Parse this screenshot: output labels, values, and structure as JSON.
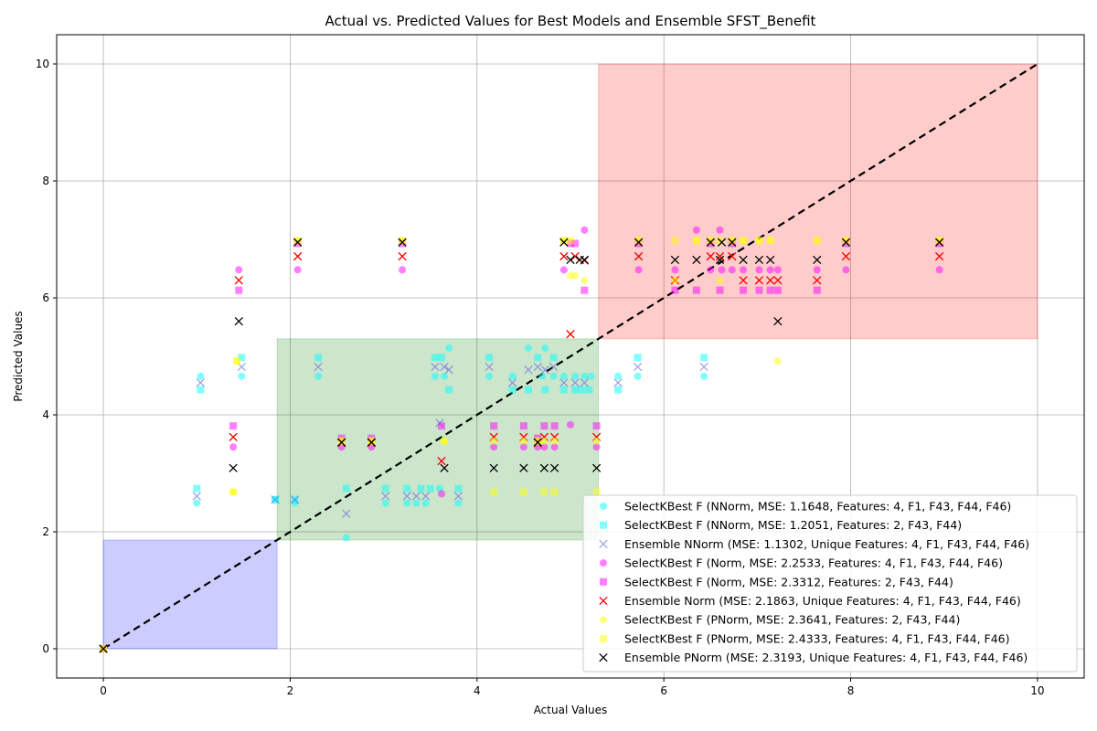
{
  "chart_data": {
    "type": "scatter",
    "title": "Actual vs. Predicted Values for Best Models and Ensemble SFST_Benefit",
    "xlabel": "Actual Values",
    "ylabel": "Predicted Values",
    "xlim": [
      -0.5,
      10.5
    ],
    "ylim": [
      -0.5,
      10.5
    ],
    "xticks": [
      "0",
      "2",
      "4",
      "6",
      "8",
      "10"
    ],
    "yticks": [
      "0",
      "2",
      "4",
      "6",
      "8",
      "10"
    ],
    "xtick_values": [
      0,
      2,
      4,
      6,
      8,
      10
    ],
    "ytick_values": [
      0,
      2,
      4,
      6,
      8,
      10
    ],
    "grid": true,
    "legend_position": "lower-right",
    "regions": [
      {
        "x0": 0,
        "x1": 1.86,
        "y0": 0,
        "y1": 1.86,
        "color": "#0000ff",
        "opacity": 0.2
      },
      {
        "x0": 1.86,
        "x1": 5.3,
        "y0": 1.86,
        "y1": 5.3,
        "color": "#008000",
        "opacity": 0.2
      },
      {
        "x0": 5.3,
        "x1": 10,
        "y0": 5.3,
        "y1": 10,
        "color": "#ff0000",
        "opacity": 0.2
      }
    ],
    "identity_line": {
      "from": [
        0,
        0
      ],
      "to": [
        10,
        10
      ],
      "color": "#000000",
      "style": "dashed"
    },
    "series": [
      {
        "name": "SelectKBest F (NNorm, MSE: 1.1648, Features: 4, F1, F43, F44, F46)",
        "marker": "circle",
        "color": "#00ffff",
        "opacity": 0.5,
        "points": [
          [
            0,
            0
          ],
          [
            1.0,
            2.49
          ],
          [
            1.04,
            4.66
          ],
          [
            1.48,
            4.66
          ],
          [
            1.84,
            2.55
          ],
          [
            2.05,
            2.49
          ],
          [
            2.3,
            4.66
          ],
          [
            2.6,
            1.9
          ],
          [
            3.02,
            2.49
          ],
          [
            3.25,
            2.49
          ],
          [
            3.35,
            2.49
          ],
          [
            3.45,
            2.49
          ],
          [
            3.55,
            4.66
          ],
          [
            3.6,
            2.74
          ],
          [
            3.65,
            4.66
          ],
          [
            3.7,
            5.14
          ],
          [
            3.8,
            2.49
          ],
          [
            4.13,
            4.66
          ],
          [
            4.38,
            4.66
          ],
          [
            4.55,
            5.14
          ],
          [
            4.7,
            4.66
          ],
          [
            4.73,
            5.14
          ],
          [
            4.82,
            4.66
          ],
          [
            4.93,
            4.66
          ],
          [
            5.05,
            4.66
          ],
          [
            5.15,
            4.66
          ],
          [
            5.22,
            4.66
          ],
          [
            5.51,
            4.66
          ],
          [
            5.72,
            4.66
          ],
          [
            6.43,
            4.66
          ]
        ]
      },
      {
        "name": "SelectKBest F (NNorm, MSE: 1.2051, Features: 2, F43, F44)",
        "marker": "square",
        "color": "#00ffff",
        "opacity": 0.5,
        "points": [
          [
            0,
            0
          ],
          [
            1.0,
            2.74
          ],
          [
            1.04,
            4.43
          ],
          [
            1.48,
            4.98
          ],
          [
            1.84,
            2.55
          ],
          [
            2.05,
            2.55
          ],
          [
            2.3,
            4.98
          ],
          [
            2.6,
            2.74
          ],
          [
            3.02,
            2.74
          ],
          [
            3.25,
            2.74
          ],
          [
            3.4,
            2.74
          ],
          [
            3.5,
            2.74
          ],
          [
            3.55,
            4.98
          ],
          [
            3.62,
            4.98
          ],
          [
            3.7,
            4.43
          ],
          [
            3.8,
            2.74
          ],
          [
            4.13,
            4.98
          ],
          [
            4.38,
            4.43
          ],
          [
            4.55,
            4.43
          ],
          [
            4.65,
            4.98
          ],
          [
            4.73,
            4.43
          ],
          [
            4.82,
            4.98
          ],
          [
            4.93,
            4.43
          ],
          [
            5.05,
            4.43
          ],
          [
            5.12,
            4.43
          ],
          [
            5.2,
            4.43
          ],
          [
            5.51,
            4.43
          ],
          [
            5.72,
            4.98
          ],
          [
            6.43,
            4.98
          ]
        ]
      },
      {
        "name": "Ensemble NNorm (MSE: 1.1302, Unique Features: 4, F1, F43, F44, F46)",
        "marker": "x",
        "color": "#6666dd",
        "opacity": 0.6,
        "points": [
          [
            0,
            0
          ],
          [
            1.0,
            2.61
          ],
          [
            1.04,
            4.55
          ],
          [
            1.48,
            4.82
          ],
          [
            1.84,
            2.55
          ],
          [
            2.05,
            2.55
          ],
          [
            2.3,
            4.82
          ],
          [
            2.6,
            2.31
          ],
          [
            3.02,
            2.61
          ],
          [
            3.25,
            2.61
          ],
          [
            3.35,
            2.61
          ],
          [
            3.45,
            2.61
          ],
          [
            3.55,
            4.82
          ],
          [
            3.6,
            3.86
          ],
          [
            3.65,
            4.82
          ],
          [
            3.7,
            4.77
          ],
          [
            3.8,
            2.61
          ],
          [
            4.13,
            4.82
          ],
          [
            4.38,
            4.55
          ],
          [
            4.55,
            4.77
          ],
          [
            4.65,
            4.82
          ],
          [
            4.73,
            4.77
          ],
          [
            4.82,
            4.82
          ],
          [
            4.93,
            4.55
          ],
          [
            5.05,
            4.55
          ],
          [
            5.15,
            4.55
          ],
          [
            5.51,
            4.55
          ],
          [
            5.72,
            4.82
          ],
          [
            6.43,
            4.82
          ]
        ]
      },
      {
        "name": "SelectKBest F (Norm, MSE: 2.2533, Features: 4, F1, F43, F44, F46)",
        "marker": "circle",
        "color": "#ff00ff",
        "opacity": 0.5,
        "points": [
          [
            0,
            0
          ],
          [
            1.39,
            3.45
          ],
          [
            1.45,
            6.48
          ],
          [
            2.08,
            6.48
          ],
          [
            2.55,
            3.45
          ],
          [
            2.87,
            3.45
          ],
          [
            3.2,
            6.48
          ],
          [
            3.62,
            2.65
          ],
          [
            4.18,
            3.45
          ],
          [
            4.5,
            3.45
          ],
          [
            4.65,
            3.45
          ],
          [
            4.72,
            3.45
          ],
          [
            4.83,
            3.45
          ],
          [
            4.93,
            6.48
          ],
          [
            5.0,
            3.83
          ],
          [
            5.15,
            7.16
          ],
          [
            5.28,
            3.45
          ],
          [
            5.73,
            6.48
          ],
          [
            6.12,
            6.48
          ],
          [
            6.35,
            7.16
          ],
          [
            6.5,
            6.48
          ],
          [
            6.6,
            7.16
          ],
          [
            6.62,
            6.48
          ],
          [
            6.73,
            6.48
          ],
          [
            6.85,
            6.48
          ],
          [
            7.02,
            6.48
          ],
          [
            7.14,
            6.48
          ],
          [
            7.22,
            6.48
          ],
          [
            7.64,
            6.48
          ],
          [
            7.95,
            6.48
          ],
          [
            8.95,
            6.48
          ]
        ]
      },
      {
        "name": "SelectKBest F (Norm, MSE: 2.3312, Features: 2, F43, F44)",
        "marker": "square",
        "color": "#ff00ff",
        "opacity": 0.5,
        "points": [
          [
            0,
            0
          ],
          [
            1.39,
            3.81
          ],
          [
            1.45,
            6.13
          ],
          [
            2.08,
            6.93
          ],
          [
            2.55,
            3.6
          ],
          [
            2.87,
            3.6
          ],
          [
            3.2,
            6.93
          ],
          [
            3.62,
            3.81
          ],
          [
            4.18,
            3.81
          ],
          [
            4.5,
            3.81
          ],
          [
            4.65,
            3.6
          ],
          [
            4.72,
            3.81
          ],
          [
            4.83,
            3.81
          ],
          [
            5.0,
            6.93
          ],
          [
            5.05,
            6.93
          ],
          [
            5.15,
            6.13
          ],
          [
            5.28,
            3.81
          ],
          [
            5.73,
            6.93
          ],
          [
            6.12,
            6.13
          ],
          [
            6.35,
            6.13
          ],
          [
            6.5,
            6.93
          ],
          [
            6.6,
            6.13
          ],
          [
            6.73,
            6.93
          ],
          [
            6.85,
            6.13
          ],
          [
            7.02,
            6.13
          ],
          [
            7.14,
            6.13
          ],
          [
            7.22,
            6.13
          ],
          [
            7.64,
            6.13
          ],
          [
            7.95,
            6.93
          ],
          [
            8.95,
            6.93
          ]
        ]
      },
      {
        "name": "Ensemble Norm (MSE: 2.1863, Unique Features: 4, F1, F43, F44, F46)",
        "marker": "x",
        "color": "#ff0000",
        "opacity": 1,
        "points": [
          [
            0,
            0
          ],
          [
            1.39,
            3.62
          ],
          [
            1.45,
            6.3
          ],
          [
            2.08,
            6.71
          ],
          [
            2.55,
            3.52
          ],
          [
            2.87,
            3.52
          ],
          [
            3.2,
            6.71
          ],
          [
            3.62,
            3.21
          ],
          [
            4.18,
            3.62
          ],
          [
            4.5,
            3.62
          ],
          [
            4.65,
            3.52
          ],
          [
            4.72,
            3.62
          ],
          [
            4.83,
            3.62
          ],
          [
            4.93,
            6.71
          ],
          [
            5.0,
            5.38
          ],
          [
            5.05,
            6.71
          ],
          [
            5.15,
            6.64
          ],
          [
            5.28,
            3.62
          ],
          [
            5.73,
            6.71
          ],
          [
            6.12,
            6.3
          ],
          [
            6.5,
            6.71
          ],
          [
            6.6,
            6.71
          ],
          [
            6.73,
            6.71
          ],
          [
            6.85,
            6.3
          ],
          [
            7.02,
            6.3
          ],
          [
            7.14,
            6.3
          ],
          [
            7.22,
            6.3
          ],
          [
            7.64,
            6.3
          ],
          [
            7.95,
            6.71
          ],
          [
            8.95,
            6.71
          ]
        ]
      },
      {
        "name": "SelectKBest F (PNorm, MSE: 2.3641, Features: 2, F43, F44)",
        "marker": "circle",
        "color": "#ffff00",
        "opacity": 0.5,
        "points": [
          [
            0,
            0
          ],
          [
            1.39,
            2.68
          ],
          [
            1.43,
            4.92
          ],
          [
            2.08,
            6.98
          ],
          [
            2.55,
            3.55
          ],
          [
            2.87,
            3.55
          ],
          [
            3.2,
            6.98
          ],
          [
            3.65,
            3.55
          ],
          [
            4.18,
            3.55
          ],
          [
            4.5,
            3.55
          ],
          [
            4.65,
            3.55
          ],
          [
            4.72,
            3.55
          ],
          [
            4.83,
            3.55
          ],
          [
            4.93,
            6.98
          ],
          [
            5.0,
            6.38
          ],
          [
            5.05,
            6.38
          ],
          [
            5.15,
            6.3
          ],
          [
            5.28,
            3.55
          ],
          [
            5.73,
            6.98
          ],
          [
            6.12,
            6.3
          ],
          [
            6.35,
            6.98
          ],
          [
            6.5,
            6.98
          ],
          [
            6.6,
            6.3
          ],
          [
            6.73,
            6.98
          ],
          [
            6.85,
            6.98
          ],
          [
            7.02,
            6.98
          ],
          [
            7.14,
            6.98
          ],
          [
            7.22,
            4.92
          ],
          [
            7.64,
            6.98
          ],
          [
            7.95,
            6.98
          ],
          [
            8.95,
            6.98
          ]
        ]
      },
      {
        "name": "SelectKBest F (PNorm, MSE: 2.4333, Features: 4, F1, F43, F44, F46)",
        "marker": "square",
        "color": "#ffff00",
        "opacity": 0.5,
        "points": [
          [
            0,
            0
          ],
          [
            1.39,
            2.68
          ],
          [
            1.43,
            4.92
          ],
          [
            2.08,
            6.98
          ],
          [
            2.55,
            3.55
          ],
          [
            2.87,
            3.55
          ],
          [
            3.2,
            6.98
          ],
          [
            3.65,
            3.55
          ],
          [
            4.18,
            2.68
          ],
          [
            4.5,
            2.68
          ],
          [
            4.65,
            3.55
          ],
          [
            4.72,
            2.68
          ],
          [
            4.83,
            2.68
          ],
          [
            4.93,
            6.98
          ],
          [
            5.0,
            6.98
          ],
          [
            5.28,
            2.68
          ],
          [
            5.73,
            6.98
          ],
          [
            6.12,
            6.98
          ],
          [
            6.35,
            6.98
          ],
          [
            6.5,
            6.98
          ],
          [
            6.6,
            6.98
          ],
          [
            6.73,
            6.98
          ],
          [
            6.85,
            6.98
          ],
          [
            7.02,
            6.98
          ],
          [
            7.14,
            6.98
          ],
          [
            7.64,
            6.98
          ],
          [
            7.95,
            6.98
          ],
          [
            8.95,
            6.98
          ]
        ]
      },
      {
        "name": "Ensemble PNorm (MSE: 2.3193, Unique Features: 4, F1, F43, F44, F46)",
        "marker": "x",
        "color": "#000000",
        "opacity": 1,
        "points": [
          [
            0,
            0
          ],
          [
            1.39,
            3.09
          ],
          [
            1.45,
            5.6
          ],
          [
            2.08,
            6.95
          ],
          [
            2.55,
            3.53
          ],
          [
            2.87,
            3.53
          ],
          [
            3.2,
            6.95
          ],
          [
            3.65,
            3.09
          ],
          [
            4.18,
            3.09
          ],
          [
            4.5,
            3.09
          ],
          [
            4.65,
            3.53
          ],
          [
            4.72,
            3.09
          ],
          [
            4.83,
            3.09
          ],
          [
            4.93,
            6.95
          ],
          [
            5.0,
            6.65
          ],
          [
            5.1,
            6.65
          ],
          [
            5.15,
            6.65
          ],
          [
            5.28,
            3.09
          ],
          [
            5.73,
            6.95
          ],
          [
            6.12,
            6.65
          ],
          [
            6.35,
            6.65
          ],
          [
            6.5,
            6.95
          ],
          [
            6.6,
            6.65
          ],
          [
            6.62,
            6.95
          ],
          [
            6.73,
            6.95
          ],
          [
            6.85,
            6.65
          ],
          [
            7.02,
            6.65
          ],
          [
            7.14,
            6.65
          ],
          [
            7.22,
            5.6
          ],
          [
            7.64,
            6.65
          ],
          [
            7.95,
            6.95
          ],
          [
            8.95,
            6.95
          ]
        ]
      }
    ]
  }
}
